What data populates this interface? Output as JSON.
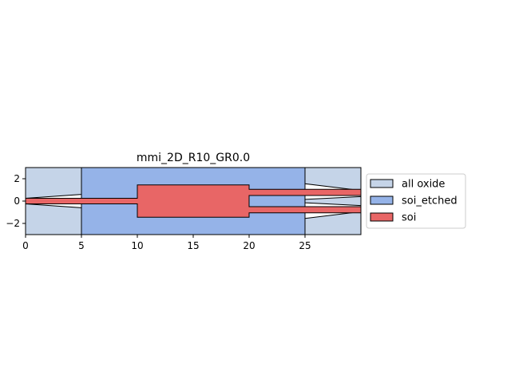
{
  "chart_data": {
    "type": "layout",
    "title": "mmi_2D_R10_GR0.0",
    "xlabel": "",
    "ylabel": "",
    "xlim": [
      0,
      30
    ],
    "ylim": [
      -3,
      3
    ],
    "xticks": [
      0,
      5,
      10,
      15,
      20,
      25
    ],
    "yticks": [
      2,
      0,
      -2
    ],
    "grid": false,
    "legend_position": "outside-right",
    "layers": [
      {
        "name": "all oxide",
        "color": "#c5d4e8",
        "polygons": [
          [
            [
              0,
              3
            ],
            [
              5,
              3
            ],
            [
              5,
              0.6
            ],
            [
              0,
              0.25
            ]
          ],
          [
            [
              0,
              -0.25
            ],
            [
              5,
              -0.6
            ],
            [
              5,
              -3
            ],
            [
              0,
              -3
            ]
          ],
          [
            [
              25,
              3
            ],
            [
              30,
              3
            ],
            [
              30,
              0.95
            ],
            [
              25,
              1.55
            ]
          ],
          [
            [
              25,
              0.15
            ],
            [
              30,
              0.4
            ],
            [
              30,
              -0.4
            ],
            [
              25,
              -0.15
            ]
          ],
          [
            [
              25,
              -1.55
            ],
            [
              30,
              -0.95
            ],
            [
              30,
              -3
            ],
            [
              25,
              -3
            ]
          ]
        ]
      },
      {
        "name": "soi_etched",
        "color": "#95b3e8",
        "polygons": [
          [
            [
              5,
              3
            ],
            [
              25,
              3
            ],
            [
              25,
              -3
            ],
            [
              5,
              -3
            ]
          ]
        ]
      },
      {
        "name": "soi",
        "color": "#e86666",
        "polygons": [
          [
            [
              0,
              0.25
            ],
            [
              10,
              0.25
            ],
            [
              10,
              1.45
            ],
            [
              20,
              1.45
            ],
            [
              20,
              1.05
            ],
            [
              30,
              1.05
            ],
            [
              30,
              0.5
            ],
            [
              20,
              0.5
            ],
            [
              20,
              -0.5
            ],
            [
              30,
              -0.5
            ],
            [
              30,
              -1.05
            ],
            [
              20,
              -1.05
            ],
            [
              20,
              -1.45
            ],
            [
              10,
              -1.45
            ],
            [
              10,
              -0.25
            ],
            [
              0,
              -0.25
            ]
          ]
        ]
      }
    ]
  }
}
